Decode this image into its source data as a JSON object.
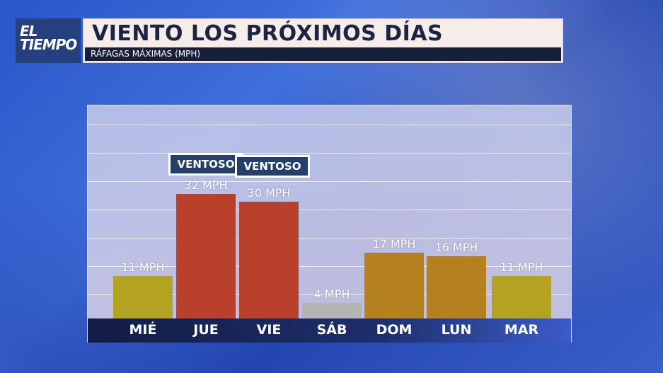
{
  "logo": {
    "line1": "EL",
    "line2": "TIEMPO"
  },
  "header": {
    "title": "VIENTO LOS PRÓXIMOS DÍAS",
    "subtitle": "RÁFAGAS MÁXIMAS (MPH)"
  },
  "colors": {
    "calm": "#b4a222",
    "windy": "#b9402a",
    "low": "#b4b4b4",
    "moderate": "#b5801e"
  },
  "chart_data": {
    "type": "bar",
    "title": "VIENTO LOS PRÓXIMOS DÍAS",
    "ylabel": "RÁFAGAS MÁXIMAS (MPH)",
    "categories": [
      "MIÉ",
      "JUE",
      "VIE",
      "SÁB",
      "DOM",
      "LUN",
      "MAR"
    ],
    "values": [
      11,
      32,
      30,
      4,
      17,
      16,
      11
    ],
    "value_labels": [
      "11 MPH",
      "32 MPH",
      "30 MPH",
      "4 MPH",
      "17 MPH",
      "16 MPH",
      "11 MPH"
    ],
    "bar_colors": [
      "calm",
      "windy",
      "windy",
      "low",
      "moderate",
      "moderate",
      "calm"
    ],
    "annotations": [
      "",
      "VENTOSO",
      "VENTOSO",
      "",
      "",
      "",
      ""
    ],
    "ylim": [
      0,
      40
    ],
    "grid": true
  }
}
